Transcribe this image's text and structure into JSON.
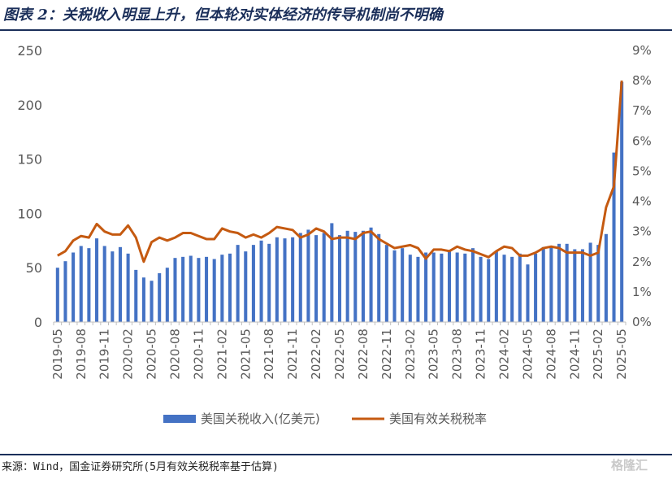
{
  "header": {
    "title": "图表 2：关税收入明显上升，但本轮对实体经济的传导机制尚不明确"
  },
  "footer": {
    "source": "来源：Wind，国金证券研究所(5月有效关税税率基于估算)",
    "watermark": "格隆汇"
  },
  "colors": {
    "bar": "#4472c4",
    "line": "#c55a11",
    "rule": "#1b2f5a",
    "axis_text": "#595959"
  },
  "chart_data": {
    "type": "bar+line",
    "title": "",
    "x": [
      "2019-05",
      "2019-06",
      "2019-07",
      "2019-08",
      "2019-09",
      "2019-10",
      "2019-11",
      "2019-12",
      "2020-01",
      "2020-02",
      "2020-03",
      "2020-04",
      "2020-05",
      "2020-06",
      "2020-07",
      "2020-08",
      "2020-09",
      "2020-10",
      "2020-11",
      "2020-12",
      "2021-01",
      "2021-02",
      "2021-03",
      "2021-04",
      "2021-05",
      "2021-06",
      "2021-07",
      "2021-08",
      "2021-09",
      "2021-10",
      "2021-11",
      "2021-12",
      "2022-01",
      "2022-02",
      "2022-03",
      "2022-04",
      "2022-05",
      "2022-06",
      "2022-07",
      "2022-08",
      "2022-09",
      "2022-10",
      "2022-11",
      "2022-12",
      "2023-01",
      "2023-02",
      "2023-03",
      "2023-04",
      "2023-05",
      "2023-06",
      "2023-07",
      "2023-08",
      "2023-09",
      "2023-10",
      "2023-11",
      "2023-12",
      "2024-01",
      "2024-02",
      "2024-03",
      "2024-04",
      "2024-05",
      "2024-06",
      "2024-07",
      "2024-08",
      "2024-09",
      "2024-10",
      "2024-11",
      "2024-12",
      "2025-01",
      "2025-02",
      "2025-03",
      "2025-04",
      "2025-05"
    ],
    "x_tick_labels": [
      "2019-05",
      "2019-08",
      "2019-11",
      "2020-02",
      "2020-05",
      "2020-08",
      "2020-11",
      "2021-02",
      "2021-05",
      "2021-08",
      "2021-11",
      "2022-02",
      "2022-05",
      "2022-08",
      "2022-11",
      "2023-02",
      "2023-05",
      "2023-08",
      "2023-11",
      "2024-02",
      "2024-05",
      "2024-08",
      "2024-11",
      "2025-02",
      "2025-05"
    ],
    "y_left": {
      "ylim": [
        0,
        250
      ],
      "ticks": [
        "0",
        "50",
        "100",
        "150",
        "200",
        "250"
      ]
    },
    "y_right": {
      "ylim": [
        0,
        9
      ],
      "ticks": [
        "0%",
        "1%",
        "2%",
        "3%",
        "4%",
        "5%",
        "6%",
        "7%",
        "8%",
        "9%"
      ]
    },
    "grid": false,
    "legend_position": "bottom",
    "series": [
      {
        "name": "美国关税收入(亿美元)",
        "type": "bar",
        "axis": "left",
        "values": [
          50,
          56,
          64,
          70,
          68,
          77,
          70,
          65,
          69,
          63,
          48,
          41,
          38,
          45,
          50,
          59,
          60,
          61,
          59,
          60,
          58,
          62,
          63,
          71,
          65,
          71,
          75,
          72,
          78,
          77,
          78,
          82,
          85,
          80,
          82,
          91,
          80,
          84,
          83,
          84,
          87,
          81,
          71,
          66,
          68,
          62,
          60,
          64,
          64,
          63,
          66,
          64,
          63,
          68,
          60,
          58,
          65,
          62,
          60,
          63,
          53,
          63,
          69,
          70,
          72,
          72,
          67,
          67,
          73,
          71,
          81,
          156,
          221
        ]
      },
      {
        "name": "美国有效关税税率",
        "type": "line",
        "axis": "right",
        "values": [
          2.2,
          2.35,
          2.7,
          2.85,
          2.8,
          3.25,
          3.0,
          2.9,
          2.9,
          3.2,
          2.8,
          2.0,
          2.65,
          2.8,
          2.7,
          2.8,
          2.95,
          2.95,
          2.85,
          2.75,
          2.75,
          3.1,
          3.0,
          2.95,
          2.8,
          2.9,
          2.8,
          2.95,
          3.15,
          3.1,
          3.05,
          2.8,
          2.9,
          3.1,
          3.0,
          2.75,
          2.8,
          2.8,
          2.75,
          2.95,
          3.0,
          2.75,
          2.6,
          2.45,
          2.5,
          2.55,
          2.45,
          2.1,
          2.4,
          2.4,
          2.35,
          2.5,
          2.4,
          2.35,
          2.25,
          2.15,
          2.35,
          2.5,
          2.45,
          2.2,
          2.2,
          2.3,
          2.45,
          2.5,
          2.45,
          2.3,
          2.3,
          2.3,
          2.2,
          2.3,
          3.8,
          4.5,
          8.0
        ]
      }
    ]
  }
}
